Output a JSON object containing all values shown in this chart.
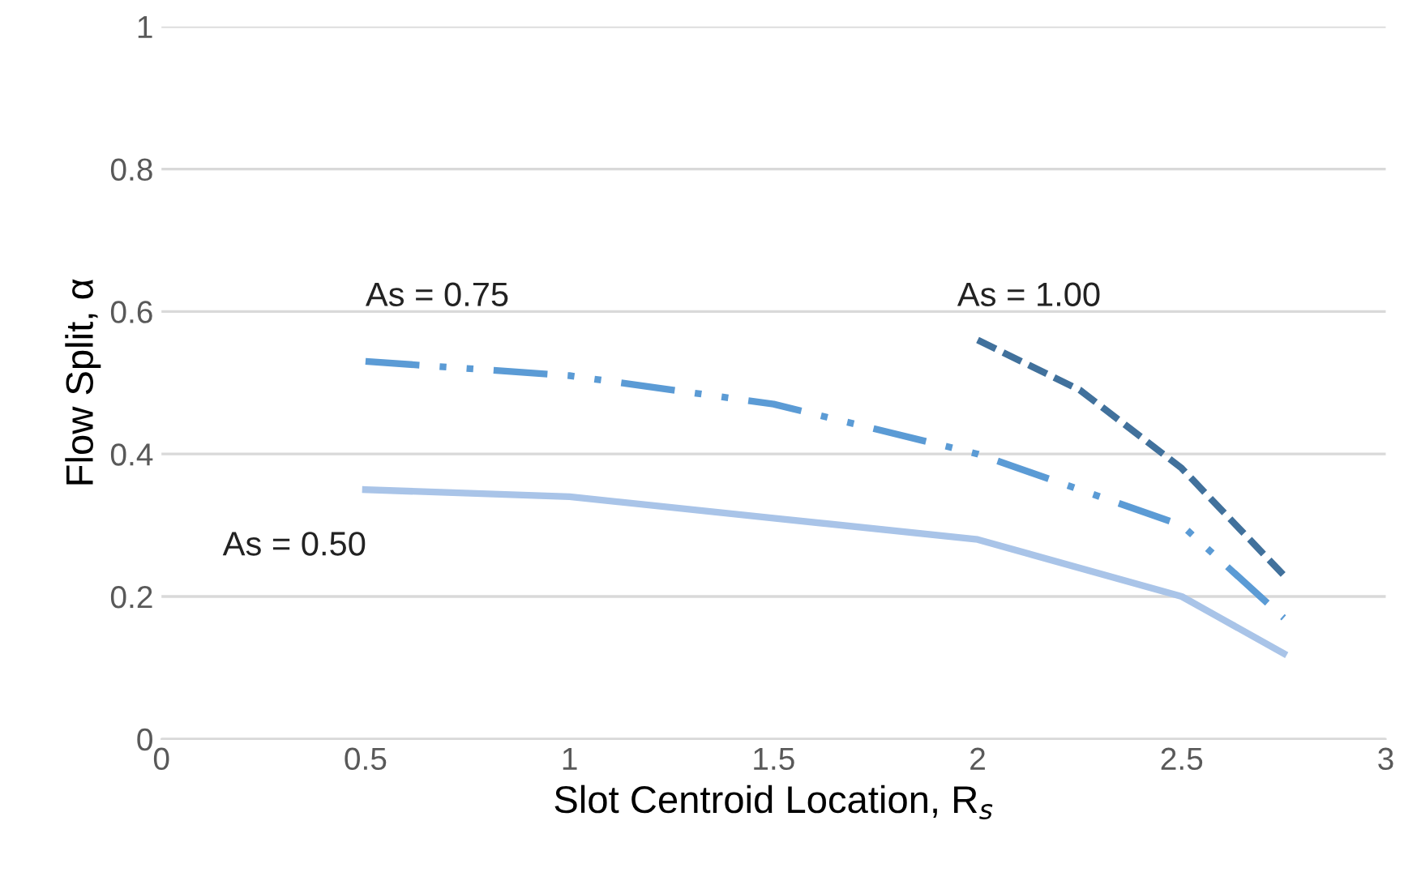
{
  "chart_data": {
    "type": "line",
    "xlabel": "Slot Centroid Location, R$_{s}$",
    "ylabel": "Flow Split, α",
    "series": [
      {
        "name": "As = 0.50",
        "color": "#a9c4e8",
        "line_style": "solid",
        "x": [
          0.5,
          1,
          1.5,
          2,
          2.5,
          2.75
        ],
        "values": [
          0.35,
          0.34,
          0.31,
          0.28,
          0.2,
          0.12
        ]
      },
      {
        "name": "As = 0.75",
        "color": "#5b9bd5",
        "line_style": "dashdot",
        "x": [
          0.5,
          1,
          1.5,
          2,
          2.5,
          2.75
        ],
        "values": [
          0.53,
          0.51,
          0.47,
          0.4,
          0.3,
          0.17
        ]
      },
      {
        "name": "As = 1.00",
        "color": "#41719c",
        "line_style": "dashed",
        "x": [
          2,
          2.25,
          2.5,
          2.75
        ],
        "values": [
          0.56,
          0.49,
          0.38,
          0.23
        ]
      }
    ],
    "xlim": [
      0,
      3
    ],
    "xticks": [
      0,
      0.5,
      1,
      1.5,
      2,
      2.5,
      3
    ],
    "ylim": [
      0,
      1
    ],
    "yticks": [
      0,
      0.2,
      0.4,
      0.6,
      0.8,
      1
    ],
    "grid": "y",
    "legend": false
  }
}
